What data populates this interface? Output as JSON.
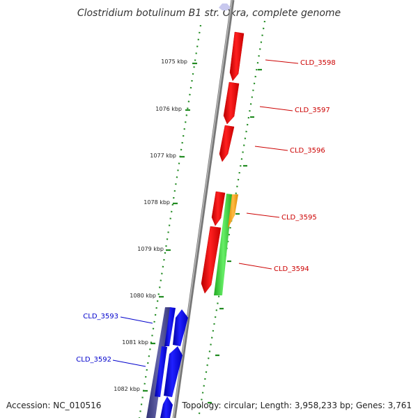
{
  "title": "Clostridium botulinum B1 str. Okra, complete genome",
  "footer": {
    "accession": "Accession: NC_010516",
    "topology": "Topology: circular; Length: 3,958,233 bp; Genes: 3,761"
  },
  "ticks": [
    {
      "label": "1075 kbp",
      "kbp": 1075
    },
    {
      "label": "1076 kbp",
      "kbp": 1076
    },
    {
      "label": "1077 kbp",
      "kbp": 1077
    },
    {
      "label": "1078 kbp",
      "kbp": 1078
    },
    {
      "label": "1079 kbp",
      "kbp": 1079
    },
    {
      "label": "1080 kbp",
      "kbp": 1080
    },
    {
      "label": "1081 kbp",
      "kbp": 1081
    },
    {
      "label": "1082 kbp",
      "kbp": 1082
    }
  ],
  "genes": [
    {
      "name": "CLD_3598",
      "color": "#cc0000",
      "side": "right"
    },
    {
      "name": "CLD_3597",
      "color": "#cc0000",
      "side": "right"
    },
    {
      "name": "CLD_3596",
      "color": "#cc0000",
      "side": "right"
    },
    {
      "name": "CLD_3595",
      "color": "#cc0000",
      "side": "right"
    },
    {
      "name": "CLD_3594",
      "color": "#cc0000",
      "side": "right"
    },
    {
      "name": "CLD_3593",
      "color": "#0000cc",
      "side": "left"
    },
    {
      "name": "CLD_3592",
      "color": "#0000cc",
      "side": "left"
    }
  ],
  "colors": {
    "reverse_cds": "#ff0000",
    "forward_cds": "#0000ff",
    "gene_feature": "#33cc33",
    "highlight_feature": "#ff9900",
    "backbone": "#888888",
    "dotted_ring": "#228b22",
    "forward_track": "#444488"
  }
}
